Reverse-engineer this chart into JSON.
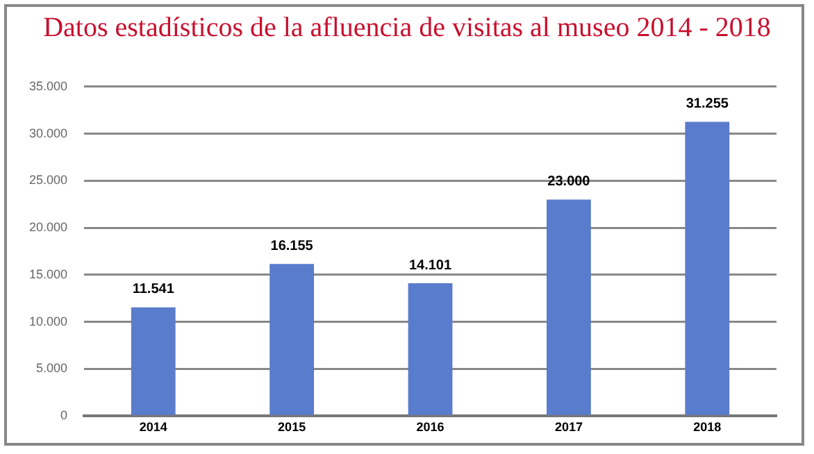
{
  "chart_data": {
    "type": "bar",
    "title": "Datos estadísticos de la afluencia de visitas al museo 2014 - 2018",
    "categories": [
      "2014",
      "2015",
      "2016",
      "2017",
      "2018"
    ],
    "values": [
      11541,
      16155,
      14101,
      23000,
      31255
    ],
    "value_labels": [
      "11.541",
      "16.155",
      "14.101",
      "23.000",
      "31.255"
    ],
    "color": "#5a7ccc",
    "ylim": [
      0,
      35000
    ],
    "yticks": [
      0,
      {
        "value": 5000,
        "label": "5.000"
      },
      {
        "value": 10000,
        "label": "10.000"
      },
      {
        "value": 15000,
        "label": "15.000"
      },
      {
        "value": 20000,
        "label": "20.000"
      },
      {
        "value": 25000,
        "label": "25.000"
      },
      {
        "value": 30000,
        "label": "30.000"
      },
      {
        "value": 35000,
        "label": "35.000"
      }
    ],
    "grid": "y",
    "legend": false
  }
}
